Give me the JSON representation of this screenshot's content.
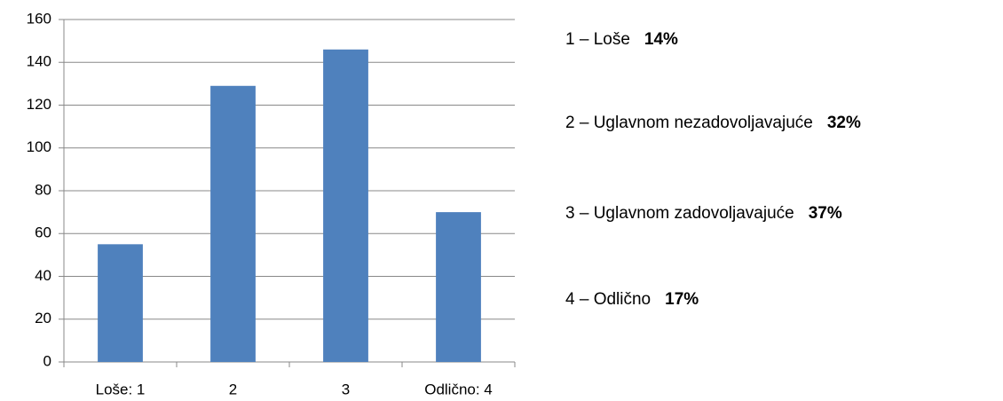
{
  "chart_data": {
    "type": "bar",
    "categories": [
      "Loše: 1",
      "2",
      "3",
      "Odlično: 4"
    ],
    "values": [
      55,
      129,
      146,
      70
    ],
    "color": "#4f81bd",
    "ylim": [
      0,
      160
    ],
    "yticks": [
      0,
      20,
      40,
      60,
      80,
      100,
      120,
      140,
      160
    ],
    "grid": true,
    "annotations": [
      {
        "text": "1 – Loše",
        "value": "14%"
      },
      {
        "text": "2 – Uglavnom nezadovoljavajuće",
        "value": "32%"
      },
      {
        "text": "3 – Uglavnom zadovoljavajuće",
        "value": "37%"
      },
      {
        "text": "4 – Odlično",
        "value": "17%"
      }
    ]
  }
}
